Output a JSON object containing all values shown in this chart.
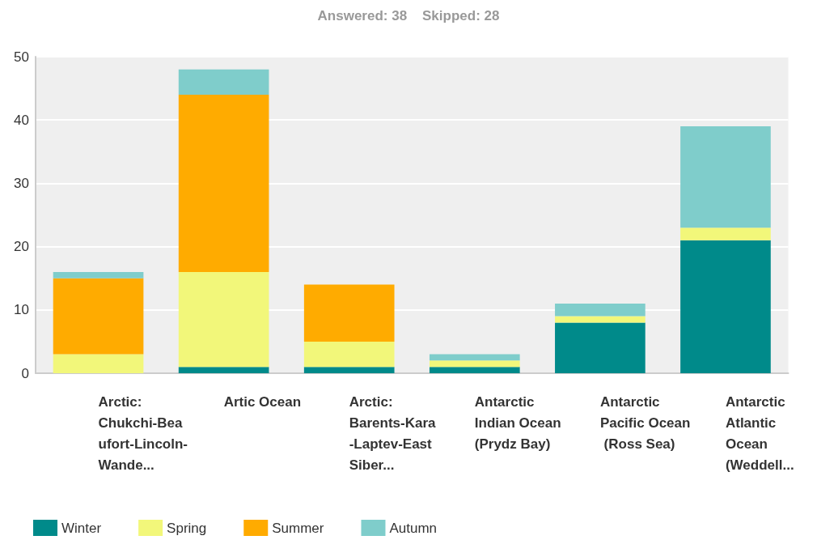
{
  "chart_data": {
    "type": "bar",
    "title": "Answered: 38    Skipped: 28",
    "categories": [
      "Arctic: Chukchi-Beaufort-Lincoln-Wande...",
      "Artic Ocean",
      "Arctic: Barents-Kara-Laptev-East Siber...",
      "Antarctic Indian Ocean (Prydz Bay)",
      "Antarctic Pacific Ocean (Ross Sea)",
      "Antarctic Atlantic Ocean (Weddell..."
    ],
    "series": [
      {
        "name": "Winter",
        "color": "#008a8a",
        "values": [
          0,
          1,
          1,
          1,
          8,
          21
        ]
      },
      {
        "name": "Spring",
        "color": "#f2f77a",
        "values": [
          3,
          15,
          4,
          1,
          1,
          2
        ]
      },
      {
        "name": "Summer",
        "color": "#ffab00",
        "values": [
          12,
          28,
          9,
          0,
          0,
          0
        ]
      },
      {
        "name": "Autumn",
        "color": "#7fcdcb",
        "values": [
          1,
          4,
          0,
          1,
          2,
          16
        ]
      }
    ],
    "stacked": true,
    "ylim": [
      0,
      50
    ],
    "yticks": [
      0,
      10,
      20,
      30,
      40,
      50
    ],
    "grid": "y",
    "legend": "bottom left"
  }
}
